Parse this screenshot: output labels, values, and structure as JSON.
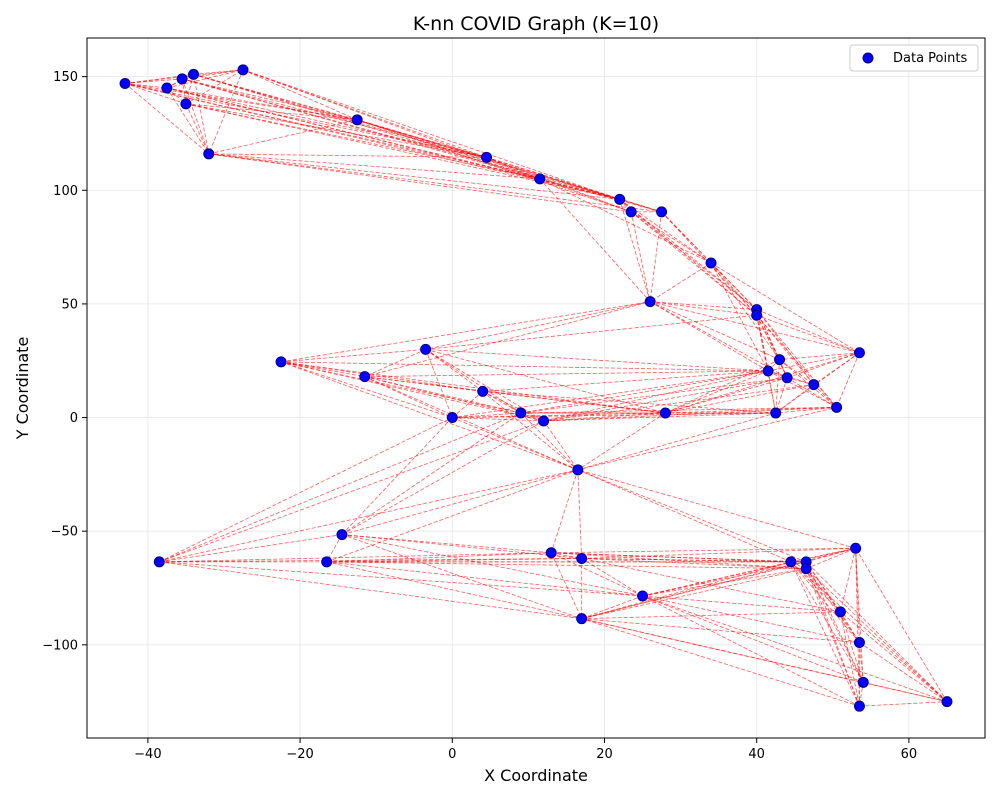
{
  "chart_data": {
    "type": "scatter",
    "title": "K-nn COVID Graph (K=10)",
    "xlabel": "X Coordinate",
    "ylabel": "Y Coordinate",
    "xlim": [
      -48,
      70
    ],
    "ylim": [
      -141,
      167
    ],
    "xticks": [
      -40,
      -20,
      0,
      20,
      40,
      60
    ],
    "yticks": [
      150,
      100,
      50,
      0,
      -50,
      -100
    ],
    "ytick_labels": [
      "150",
      "100",
      "50",
      "0",
      "−50",
      "−100"
    ],
    "xtick_labels": [
      "−40",
      "−20",
      "0",
      "20",
      "40",
      "60"
    ],
    "grid": true,
    "legend": {
      "label": "Data Points",
      "placement": "top-right"
    },
    "colors": {
      "points": "#0000ff",
      "point_edge": "#00008b",
      "edges": "#ff0000",
      "grid": "#e6e6e6"
    },
    "series": [
      {
        "name": "Data Points",
        "points": [
          [
            -43.0,
            147.0
          ],
          [
            -37.5,
            145.0
          ],
          [
            -35.5,
            149.0
          ],
          [
            -34.0,
            151.0
          ],
          [
            -35.0,
            138.0
          ],
          [
            -27.5,
            153.0
          ],
          [
            -32.0,
            116.0
          ],
          [
            -12.5,
            131.0
          ],
          [
            4.5,
            114.5
          ],
          [
            11.5,
            105.0
          ],
          [
            22.0,
            96.0
          ],
          [
            23.5,
            90.5
          ],
          [
            27.5,
            90.5
          ],
          [
            34.0,
            68.0
          ],
          [
            26.0,
            51.0
          ],
          [
            40.0,
            47.5
          ],
          [
            40.0,
            45.0
          ],
          [
            53.5,
            28.5
          ],
          [
            43.0,
            25.5
          ],
          [
            41.5,
            20.5
          ],
          [
            44.0,
            17.5
          ],
          [
            47.5,
            14.5
          ],
          [
            50.5,
            4.5
          ],
          [
            42.5,
            2.0
          ],
          [
            28.0,
            2.0
          ],
          [
            -22.5,
            24.5
          ],
          [
            -3.5,
            30.0
          ],
          [
            -11.5,
            18.0
          ],
          [
            4.0,
            11.5
          ],
          [
            9.0,
            2.0
          ],
          [
            12.0,
            -1.5
          ],
          [
            0.0,
            0.0
          ],
          [
            16.5,
            -23.0
          ],
          [
            -14.5,
            -51.5
          ],
          [
            -38.5,
            -63.5
          ],
          [
            -16.5,
            -63.5
          ],
          [
            13.0,
            -59.5
          ],
          [
            17.0,
            -62.0
          ],
          [
            25.0,
            -78.5
          ],
          [
            17.0,
            -88.5
          ],
          [
            44.5,
            -63.5
          ],
          [
            46.5,
            -63.5
          ],
          [
            46.5,
            -66.5
          ],
          [
            53.0,
            -57.5
          ],
          [
            51.0,
            -85.5
          ],
          [
            53.5,
            -99.0
          ],
          [
            54.0,
            -116.5
          ],
          [
            53.5,
            -127.0
          ],
          [
            65.0,
            -125.0
          ]
        ]
      }
    ],
    "edges_k": 10
  }
}
